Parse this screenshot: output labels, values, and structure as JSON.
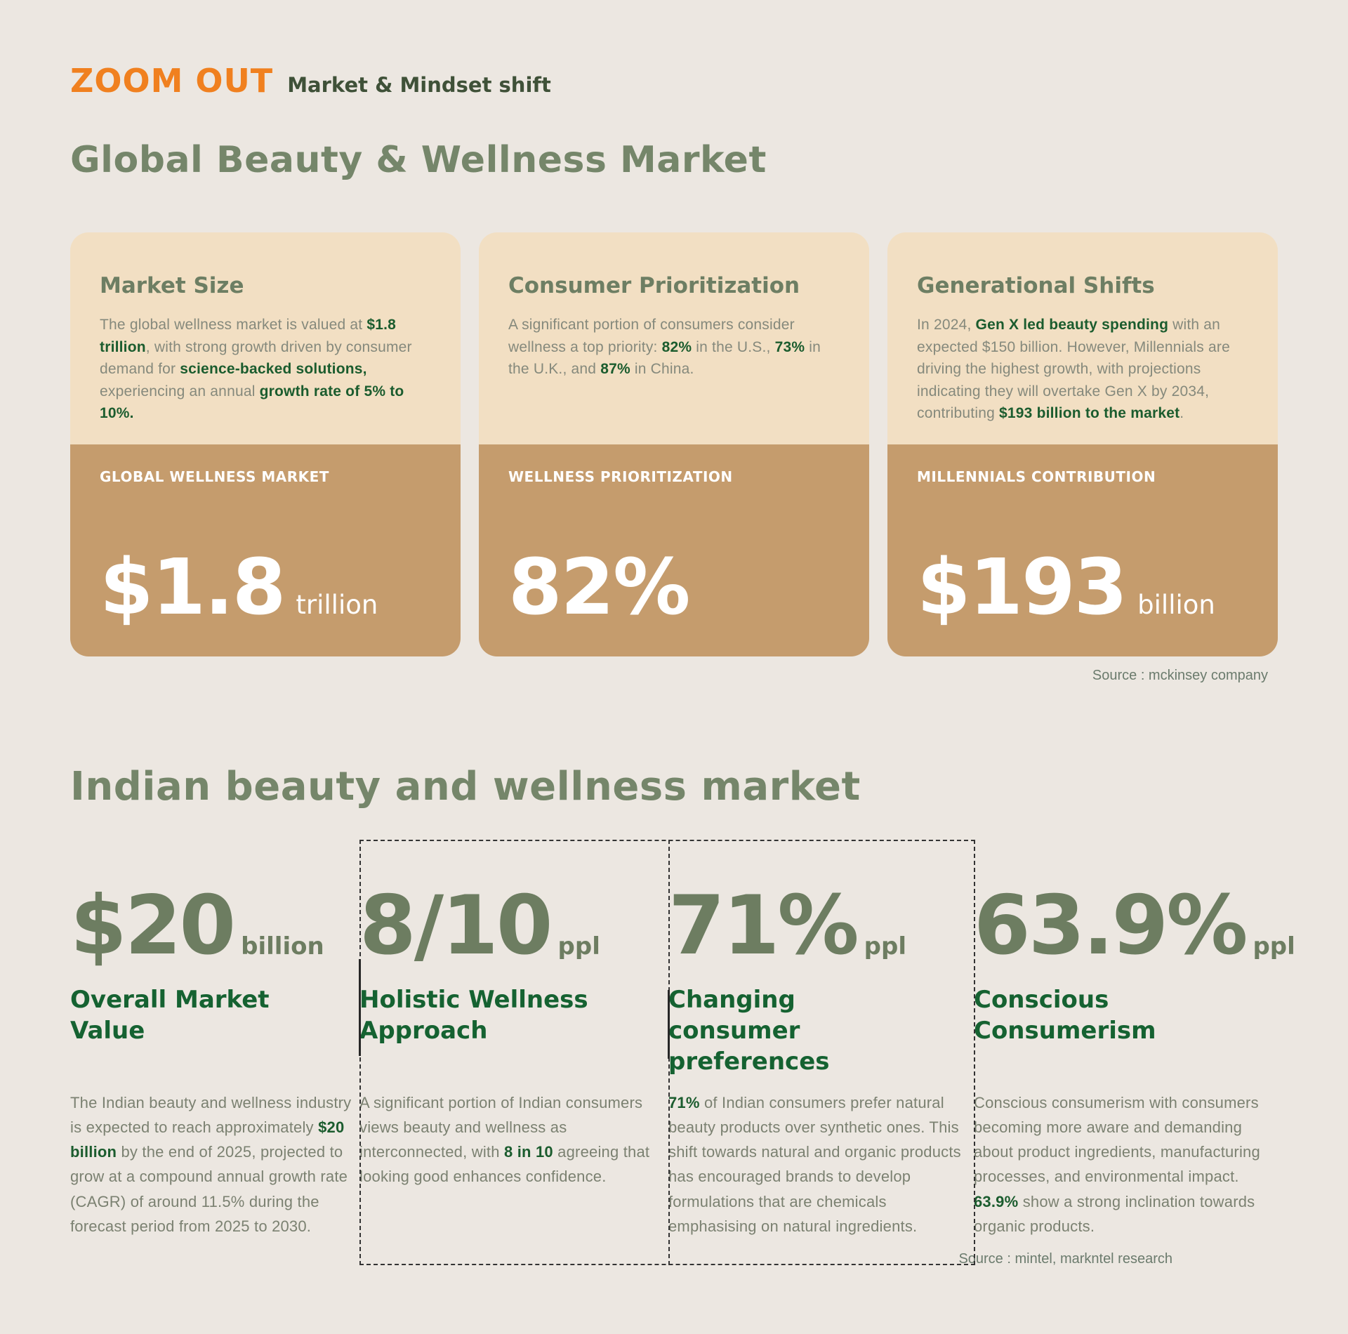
{
  "header": {
    "brand": "ZOOM OUT",
    "subtitle": "Market & Mindset shift"
  },
  "global_section": {
    "title": "Global Beauty & Wellness Market",
    "source": "Source : mckinsey company",
    "cards": [
      {
        "title": "Market Size",
        "body": [
          {
            "t": "The global wellness market is valued at "
          },
          {
            "t": "$1.8 trillion",
            "b": true
          },
          {
            "t": ", with strong growth driven by consumer demand for "
          },
          {
            "t": "science-backed solutions,",
            "b": true
          },
          {
            "t": " experiencing an annual "
          },
          {
            "t": "growth rate of 5% to 10%.",
            "b": true
          }
        ],
        "stat_label": "GLOBAL WELLNESS MARKET",
        "stat_value": "$1.8",
        "stat_unit": "trillion"
      },
      {
        "title": "Consumer Prioritization",
        "body": [
          {
            "t": "A significant portion of consumers consider wellness a top priority: "
          },
          {
            "t": "82%",
            "b": true
          },
          {
            "t": " in the U.S., "
          },
          {
            "t": "73%",
            "b": true
          },
          {
            "t": " in the U.K., and "
          },
          {
            "t": "87%",
            "b": true
          },
          {
            "t": " in China."
          }
        ],
        "stat_label": "WELLNESS PRIORITIZATION",
        "stat_value": "82%",
        "stat_unit": ""
      },
      {
        "title": "Generational Shifts",
        "body": [
          {
            "t": "In 2024, "
          },
          {
            "t": "Gen X led beauty spending",
            "b": true
          },
          {
            "t": " with an expected $150 billion. However, Millennials are driving the highest growth, with projections indicating they will overtake Gen X by 2034, contributing "
          },
          {
            "t": "$193 billion to the market",
            "b": true
          },
          {
            "t": "."
          }
        ],
        "stat_label": "MILLENNIALS CONTRIBUTION",
        "stat_value": "$193",
        "stat_unit": "billion"
      }
    ]
  },
  "india_section": {
    "title": "Indian beauty and wellness market",
    "source": "Source : mintel, markntel research",
    "columns": [
      {
        "value": "$20",
        "unit": "billion",
        "title": "Overall Market Value",
        "body": [
          {
            "t": "The Indian beauty and wellness industry is expected to reach approximately "
          },
          {
            "t": "$20 billion",
            "b": true
          },
          {
            "t": " by the end of 2025, projected to grow at a compound annual growth rate (CAGR) of around 11.5% during the forecast period from 2025 to 2030."
          }
        ]
      },
      {
        "value": "8/10",
        "unit": "ppl",
        "title": "Holistic Wellness Approach",
        "body": [
          {
            "t": "A significant portion of Indian consumers views beauty and wellness as interconnected, with "
          },
          {
            "t": "8 in 10",
            "b": true
          },
          {
            "t": " agreeing that looking good enhances confidence."
          }
        ]
      },
      {
        "value": "71%",
        "unit": "ppl",
        "title": "Changing consumer preferences",
        "body": [
          {
            "t": "71%",
            "b": true
          },
          {
            "t": " of Indian consumers prefer natural beauty products over synthetic ones. This shift towards natural and organic products has encouraged brands to develop formulations that are chemicals emphasising on natural ingredients."
          }
        ]
      },
      {
        "value": "63.9%",
        "unit": "ppl",
        "title": "Conscious Consumerism",
        "body": [
          {
            "t": "Conscious consumerism with consumers becoming more aware and demanding about product ingredients, manufacturing processes, and environmental impact. "
          },
          {
            "t": "63.9%",
            "b": true
          },
          {
            "t": " show a strong inclination towards organic products."
          }
        ]
      }
    ]
  },
  "colors": {
    "background": "#ece7e1",
    "accent_orange": "#f0801f",
    "sage_heading": "#75866a",
    "dark_green": "#1b5c2e",
    "column_title_green": "#156231",
    "card_beige": "#f2dfc3",
    "card_tan": "#c59c6d",
    "body_gray": "#82877a",
    "stat_text_white": "#ffffff"
  }
}
